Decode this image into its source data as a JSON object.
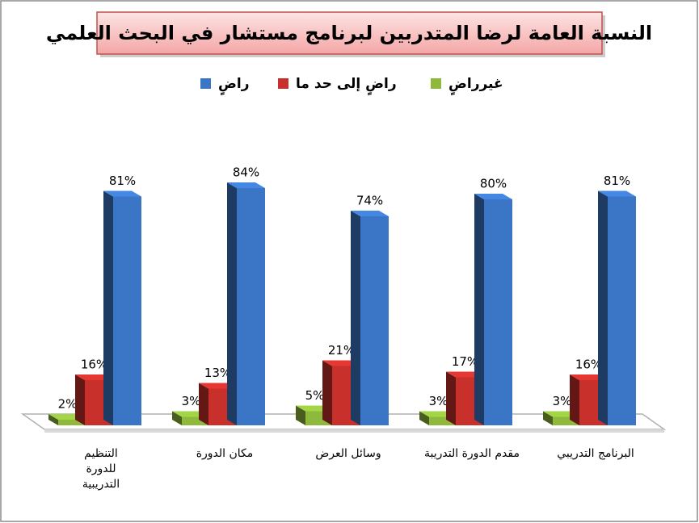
{
  "chart_data": {
    "type": "bar3d",
    "title": "النسبة العامة لرضا المتدربين لبرنامج مستشار في البحث العلمي",
    "categories": [
      "التنظيم للدورة التدريبية",
      "مكان الدورة",
      "وسائل العرض",
      "مقدم الدورة التدريبة",
      "البرنامج التدريبي"
    ],
    "series": [
      {
        "name": "راضٍ",
        "color": "#3b76c6",
        "values": [
          81,
          84,
          74,
          80,
          81
        ],
        "value_labels": [
          "81%",
          "84%",
          "74%",
          "80%",
          "81%"
        ]
      },
      {
        "name": "راضٍ إلى حد ما",
        "color": "#c8302c",
        "values": [
          16,
          13,
          21,
          17,
          16
        ],
        "value_labels": [
          "16%",
          "13%",
          "21%",
          "17%",
          "16%"
        ]
      },
      {
        "name": "غيرراضٍ",
        "color": "#8fb93c",
        "values": [
          2,
          3,
          5,
          3,
          3
        ],
        "value_labels": [
          "2%",
          "3%",
          "5%",
          "3%",
          "3%"
        ]
      }
    ]
  }
}
